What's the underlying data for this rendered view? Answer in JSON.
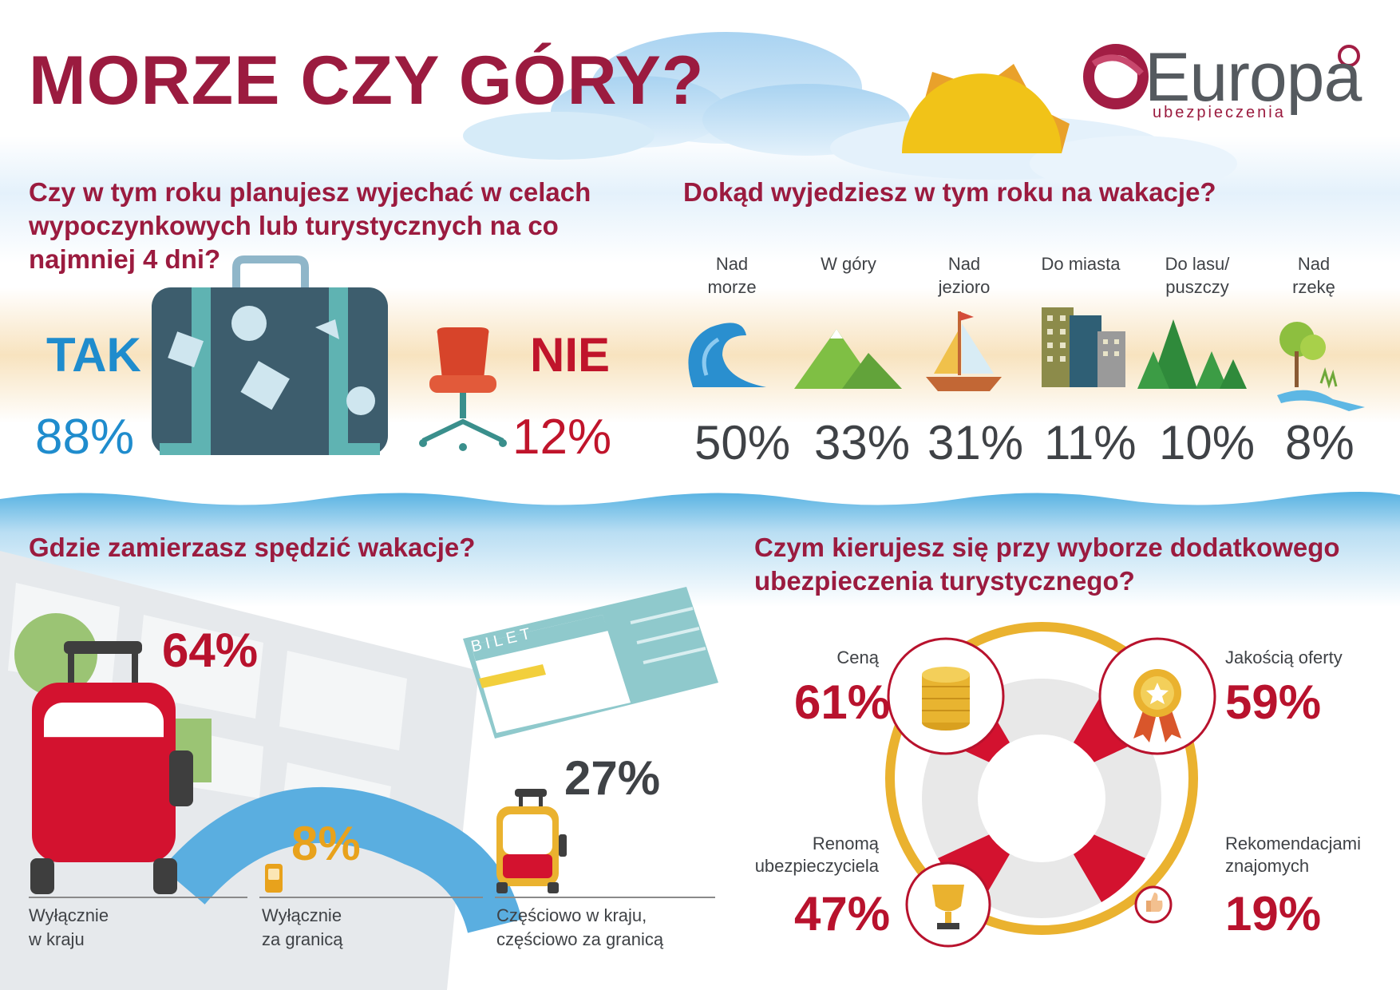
{
  "header": {
    "title": "MORZE CZY GÓRY?",
    "logo_word": "Europa",
    "logo_sub": "ubezpieczenia"
  },
  "q1": {
    "question_line1": "Czy w tym roku planujesz wyjechać w celach",
    "question_line2": "wypoczynkowych lub turystycznych na co najmniej 4 dni?",
    "yes_label": "TAK",
    "yes_pct": "88%",
    "no_label": "NIE",
    "no_pct": "12%",
    "colors": {
      "yes": "#1f8ccd",
      "no": "#c0142b"
    }
  },
  "q2": {
    "question": "Dokąd wyjedziesz w tym roku na wakacje?",
    "items": [
      {
        "line1": "Nad",
        "line2": "morze",
        "pct": "50%",
        "icon": "wave-icon"
      },
      {
        "line1": "W góry",
        "line2": "",
        "pct": "33%",
        "icon": "mountains-icon"
      },
      {
        "line1": "Nad",
        "line2": "jezioro",
        "pct": "31%",
        "icon": "sailboat-icon"
      },
      {
        "line1": "Do miasta",
        "line2": "",
        "pct": "11%",
        "icon": "city-buildings-icon"
      },
      {
        "line1": "Do lasu/",
        "line2": "puszczy",
        "pct": "10%",
        "icon": "forest-icon"
      },
      {
        "line1": "Nad",
        "line2": "rzekę",
        "pct": "8%",
        "icon": "river-tree-icon"
      }
    ]
  },
  "q3": {
    "question": "Gdzie zamierzasz spędzić wakacje?",
    "ticket_text": "BILET",
    "items": [
      {
        "pct": "64%",
        "line1": "Wyłącznie",
        "line2": "w kraju",
        "fill": 0.64
      },
      {
        "pct": "8%",
        "line1": "Wyłącznie",
        "line2": "za granicą",
        "fill": 0.08
      },
      {
        "pct": "27%",
        "line1": "Częściowo w kraju,",
        "line2": "częściowo za granicą",
        "fill": 0.27
      }
    ]
  },
  "q4": {
    "question_line1": "Czym kierujesz się przy wyborze dodatkowego",
    "question_line2": "ubezpieczenia turystycznego?",
    "items": [
      {
        "line1": "Ceną",
        "line2": "",
        "pct": "61%",
        "icon": "coins-icon"
      },
      {
        "line1": "Jakością oferty",
        "line2": "",
        "pct": "59%",
        "icon": "medal-icon"
      },
      {
        "line1": "Renomą",
        "line2": "ubezpieczyciela",
        "pct": "47%",
        "icon": "trophy-icon"
      },
      {
        "line1": "Rekomendacjami",
        "line2": "znajomych",
        "pct": "19%",
        "icon": "thumbs-up-icon"
      }
    ]
  }
}
